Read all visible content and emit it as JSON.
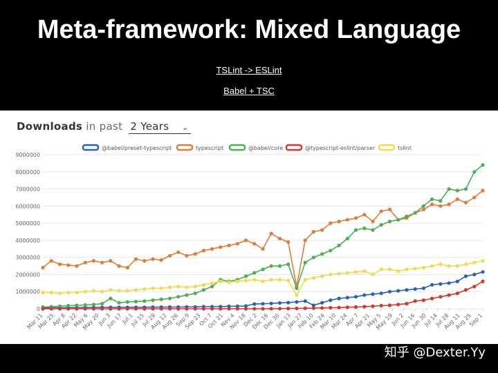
{
  "slide": {
    "title": "Meta-framework: Mixed Language",
    "links": [
      "TSLint -> ESLint",
      "Babel + TSC"
    ],
    "watermark": "知乎 @Dexter.Yy"
  },
  "downloads": {
    "label_bold": "Downloads",
    "label_rest": "in past",
    "period": "2 Years"
  },
  "chart_data": {
    "type": "line",
    "legend_position": "top",
    "grid": true,
    "ylim": [
      0,
      9000000
    ],
    "yticks": [
      0,
      1000000,
      2000000,
      3000000,
      4000000,
      5000000,
      6000000,
      7000000,
      8000000,
      9000000
    ],
    "x_tick_labels": [
      "Mar 11",
      "Mar 25",
      "Apr 8",
      "Apr 22",
      "May 6",
      "May 20",
      "Jun 3",
      "Jun 17",
      "Jul 1",
      "Jul 15",
      "Jul 29",
      "Aug 12",
      "Aug 26",
      "Sep 9",
      "Sep 23",
      "Oct 7",
      "Oct 21",
      "Nov 4",
      "Nov 18",
      "Dec 2",
      "Dec 16",
      "Dec 30",
      "Jan 13",
      "Jan 27",
      "Feb 10",
      "Feb 24",
      "Mar 10",
      "Mar 24",
      "Apr 7",
      "Apr 21",
      "May 5",
      "May 19",
      "Jun 2",
      "Jun 16",
      "Jun 30",
      "Jul 14",
      "Jul 28",
      "Aug 11",
      "Aug 25",
      "Sep 1"
    ],
    "n_points": 53,
    "series": [
      {
        "name": "@babel/preset-typescript",
        "color": "#2b5fb8",
        "values": [
          50000,
          60000,
          60000,
          70000,
          70000,
          70000,
          75000,
          80000,
          80000,
          85000,
          85000,
          90000,
          90000,
          95000,
          95000,
          100000,
          100000,
          110000,
          110000,
          120000,
          120000,
          130000,
          140000,
          150000,
          160000,
          280000,
          290000,
          310000,
          340000,
          360000,
          400000,
          450000,
          200000,
          350000,
          500000,
          600000,
          650000,
          700000,
          800000,
          850000,
          900000,
          1000000,
          1050000,
          1100000,
          1150000,
          1200000,
          1400000,
          1450000,
          1500000,
          1600000,
          1900000,
          2000000,
          2150000
        ]
      },
      {
        "name": "typescript",
        "color": "#e07b39",
        "values": [
          2400000,
          2800000,
          2600000,
          2550000,
          2500000,
          2700000,
          2800000,
          2700000,
          2800000,
          2500000,
          2400000,
          2900000,
          2800000,
          2900000,
          2850000,
          3100000,
          3300000,
          3100000,
          3200000,
          3400000,
          3500000,
          3600000,
          3700000,
          3800000,
          4000000,
          3800000,
          3500000,
          4400000,
          4100000,
          3900000,
          1300000,
          4000000,
          4500000,
          4600000,
          5000000,
          5100000,
          5200000,
          5300000,
          5500000,
          5100000,
          5700000,
          5800000,
          5200000,
          5300000,
          5600000,
          5800000,
          6100000,
          6000000,
          6100000,
          6400000,
          6200000,
          6500000,
          6900000
        ]
      },
      {
        "name": "@babel/core",
        "color": "#4caf50",
        "values": [
          100000,
          120000,
          150000,
          180000,
          200000,
          220000,
          250000,
          300000,
          600000,
          350000,
          400000,
          420000,
          450000,
          500000,
          550000,
          600000,
          700000,
          800000,
          900000,
          1100000,
          1300000,
          1700000,
          1600000,
          1700000,
          1900000,
          2100000,
          2300000,
          2500000,
          2500000,
          2600000,
          1200000,
          2700000,
          3000000,
          3200000,
          3400000,
          3700000,
          4100000,
          4600000,
          4700000,
          4600000,
          4900000,
          5100000,
          5200000,
          5400000,
          5600000,
          6000000,
          6400000,
          6300000,
          7000000,
          6900000,
          7000000,
          8000000,
          8400000
        ]
      },
      {
        "name": "@typescript-eslint/parser",
        "color": "#d9342b",
        "values": [
          0,
          0,
          0,
          0,
          0,
          0,
          0,
          0,
          0,
          0,
          0,
          0,
          0,
          0,
          0,
          0,
          0,
          0,
          0,
          0,
          0,
          0,
          0,
          0,
          0,
          0,
          0,
          5000,
          10000,
          15000,
          20000,
          30000,
          40000,
          50000,
          60000,
          70000,
          90000,
          100000,
          120000,
          150000,
          180000,
          200000,
          250000,
          300000,
          450000,
          500000,
          600000,
          700000,
          800000,
          900000,
          1100000,
          1300000,
          1600000
        ]
      },
      {
        "name": "tslint",
        "color": "#f2d94e",
        "values": [
          950000,
          950000,
          900000,
          950000,
          950000,
          1000000,
          1050000,
          1000000,
          1100000,
          1050000,
          1050000,
          1100000,
          1150000,
          1200000,
          1200000,
          1250000,
          1300000,
          1250000,
          1300000,
          1400000,
          1500000,
          1600000,
          1550000,
          1600000,
          1650000,
          1700000,
          1600000,
          1700000,
          1700000,
          1650000,
          800000,
          1700000,
          1800000,
          1900000,
          2000000,
          2050000,
          2100000,
          2150000,
          2200000,
          2000000,
          2300000,
          2300000,
          2200000,
          2300000,
          2350000,
          2400000,
          2500000,
          2600000,
          2500000,
          2500000,
          2600000,
          2700000,
          2800000
        ]
      }
    ]
  }
}
